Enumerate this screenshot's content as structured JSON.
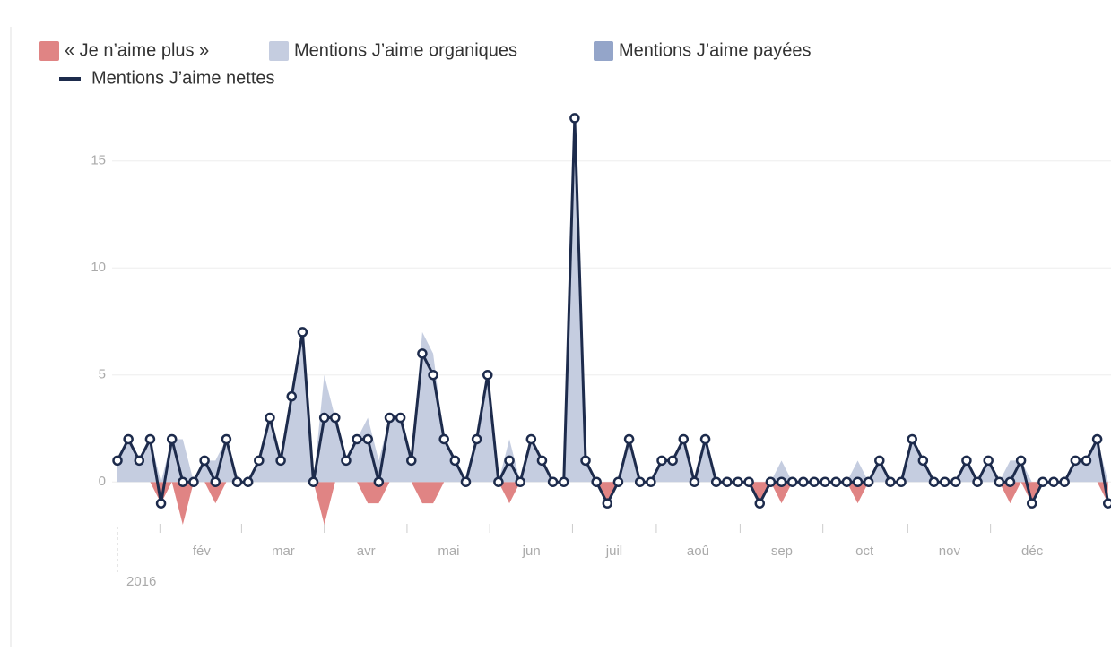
{
  "chart_data": {
    "type": "area-line",
    "legend": "top-left",
    "x_year": "2016",
    "xticks": [
      {
        "value": 3.9,
        "label": "fév"
      },
      {
        "value": 11.4,
        "label": "mar"
      },
      {
        "value": 19.0,
        "label": "avr"
      },
      {
        "value": 26.6,
        "label": "mai"
      },
      {
        "value": 34.2,
        "label": "jun"
      },
      {
        "value": 41.8,
        "label": "juil"
      },
      {
        "value": 49.5,
        "label": "aoû"
      },
      {
        "value": 57.2,
        "label": "sep"
      },
      {
        "value": 64.8,
        "label": "oct"
      },
      {
        "value": 72.6,
        "label": "nov"
      },
      {
        "value": 80.2,
        "label": "déc"
      }
    ],
    "ylim": [
      -2.5,
      18
    ],
    "yticks": [
      0,
      5,
      10,
      15
    ],
    "grid": true,
    "series": [
      {
        "name": "« Je n’aime plus »",
        "color": "#e08484",
        "kind": "area",
        "values": [
          0,
          0,
          0,
          0,
          -1,
          0,
          -2,
          0,
          0,
          -1,
          0,
          0,
          0,
          0,
          0,
          0,
          0,
          0,
          0,
          -2,
          0,
          0,
          0,
          -1,
          -1,
          0,
          0,
          0,
          -1,
          -1,
          0,
          0,
          0,
          0,
          0,
          0,
          -1,
          0,
          0,
          0,
          0,
          0,
          0,
          0,
          0,
          -1,
          0,
          0,
          0,
          0,
          0,
          0,
          0,
          0,
          0,
          0,
          0,
          0,
          0,
          -1,
          0,
          -1,
          0,
          0,
          0,
          0,
          0,
          0,
          -1,
          0,
          0,
          0,
          0,
          0,
          0,
          0,
          0,
          0,
          0,
          0,
          0,
          0,
          -1,
          0,
          -1,
          0,
          0,
          0,
          0,
          0,
          0,
          -1
        ]
      },
      {
        "name": "Mentions J’aime organiques",
        "color": "#c5cde0",
        "kind": "area",
        "values": [
          1,
          2,
          1,
          2,
          0,
          2,
          2,
          0,
          1,
          1,
          2,
          0,
          0,
          1,
          3,
          1,
          4,
          7,
          0,
          5,
          3,
          1,
          2,
          3,
          1,
          3,
          3,
          1,
          7,
          6,
          2,
          1,
          0,
          2,
          5,
          0,
          2,
          0,
          2,
          1,
          0,
          0,
          17,
          1,
          0,
          0,
          0,
          2,
          0,
          0,
          1,
          1,
          2,
          0,
          2,
          0,
          0,
          0,
          0,
          0,
          0,
          1,
          0,
          0,
          0,
          0,
          0,
          0,
          1,
          0,
          1,
          0,
          0,
          2,
          1,
          0,
          0,
          0,
          1,
          0,
          1,
          0,
          1,
          1,
          0,
          0,
          0,
          0,
          1,
          1,
          2,
          0
        ]
      },
      {
        "name": "Mentions J’aime payées",
        "color": "#94a5c9",
        "kind": "area",
        "values": [
          0,
          0,
          0,
          0,
          0,
          0,
          0,
          0,
          0,
          0,
          0,
          0,
          0,
          0,
          0,
          0,
          0,
          0,
          0,
          0,
          0,
          0,
          0,
          0,
          0,
          0,
          0,
          0,
          0,
          0,
          0,
          0,
          0,
          0,
          0,
          0,
          0,
          0,
          0,
          0,
          0,
          0,
          0,
          0,
          0,
          0,
          0,
          0,
          0,
          0,
          0,
          0,
          0,
          0,
          0,
          0,
          0,
          0,
          0,
          0,
          0,
          0,
          0,
          0,
          0,
          0,
          0,
          0,
          0,
          0,
          0,
          0,
          0,
          0,
          0,
          0,
          0,
          0,
          0,
          0,
          0,
          0,
          0,
          0,
          0,
          0,
          0,
          0,
          0,
          0,
          0,
          0
        ]
      },
      {
        "name": "Mentions J’aime nettes",
        "color": "#1d2b4c",
        "kind": "line",
        "values": [
          1,
          2,
          1,
          2,
          -1,
          2,
          0,
          0,
          1,
          0,
          2,
          0,
          0,
          1,
          3,
          1,
          4,
          7,
          0,
          3,
          3,
          1,
          2,
          2,
          0,
          3,
          3,
          1,
          6,
          5,
          2,
          1,
          0,
          2,
          5,
          0,
          1,
          0,
          2,
          1,
          0,
          0,
          17,
          1,
          0,
          -1,
          0,
          2,
          0,
          0,
          1,
          1,
          2,
          0,
          2,
          0,
          0,
          0,
          0,
          -1,
          0,
          0,
          0,
          0,
          0,
          0,
          0,
          0,
          0,
          0,
          1,
          0,
          0,
          2,
          1,
          0,
          0,
          0,
          1,
          0,
          1,
          0,
          0,
          1,
          -1,
          0,
          0,
          0,
          1,
          1,
          2,
          -1
        ]
      }
    ]
  }
}
